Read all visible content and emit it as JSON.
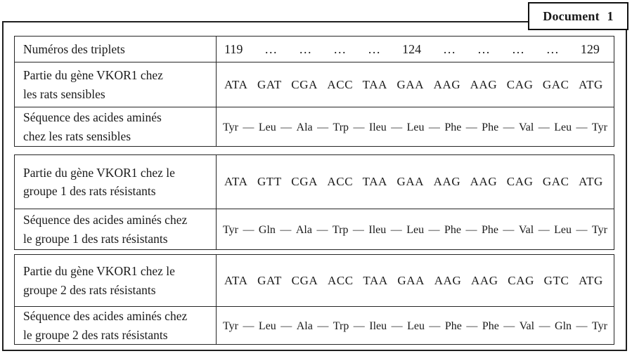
{
  "document_label": "Document 1",
  "colors": {
    "ink": "#1a1a1a",
    "paper": "#ffffff",
    "border": "#262626"
  },
  "separators": {
    "peptide_bond": "—"
  },
  "tables": [
    {
      "name": "rats sensibles",
      "rows": [
        {
          "label": "Numéros des triplets",
          "values": [
            "119",
            "…",
            "…",
            "…",
            "…",
            "124",
            "…",
            "…",
            "…",
            "…",
            "129"
          ]
        },
        {
          "label": "Partie du gène VKOR1 chez\nles rats sensibles",
          "values": [
            "ATA",
            "GAT",
            "CGA",
            "ACC",
            "TAA",
            "GAA",
            "AAG",
            "AAG",
            "CAG",
            "GAC",
            "ATG"
          ]
        },
        {
          "label": "Séquence des acides aminés\nchez  les rats sensibles",
          "values": [
            "Tyr",
            "Leu",
            "Ala",
            "Trp",
            "Ileu",
            "Leu",
            "Phe",
            "Phe",
            "Val",
            "Leu",
            "Tyr"
          ]
        }
      ]
    },
    {
      "name": "groupe 1 des rats résistants",
      "rows": [
        {
          "label": "Partie du gène VKOR1 chez le\ngroupe 1 des rats résistants",
          "values": [
            "ATA",
            "GTT",
            "CGA",
            "ACC",
            "TAA",
            "GAA",
            "AAG",
            "AAG",
            "CAG",
            "GAC",
            "ATG"
          ]
        },
        {
          "label": "Séquence des acides aminés chez\nle groupe 1 des rats résistants",
          "values": [
            "Tyr",
            "Gln",
            "Ala",
            "Trp",
            "Ileu",
            "Leu",
            "Phe",
            "Phe",
            "Val",
            "Leu",
            "Tyr"
          ]
        }
      ]
    },
    {
      "name": "groupe 2 des rats résistants",
      "rows": [
        {
          "label": "Partie du gène VKOR1 chez le\ngroupe 2 des rats résistants",
          "values": [
            "ATA",
            "GAT",
            "CGA",
            "ACC",
            "TAA",
            "GAA",
            "AAG",
            "AAG",
            "CAG",
            "GTC",
            "ATG"
          ]
        },
        {
          "label": "Séquence des acides aminés chez\nle groupe 2 des rats résistants",
          "values": [
            "Tyr",
            "Leu",
            "Ala",
            "Trp",
            "Ileu",
            "Leu",
            "Phe",
            "Phe",
            "Val",
            "Gln",
            "Tyr"
          ]
        }
      ]
    }
  ]
}
